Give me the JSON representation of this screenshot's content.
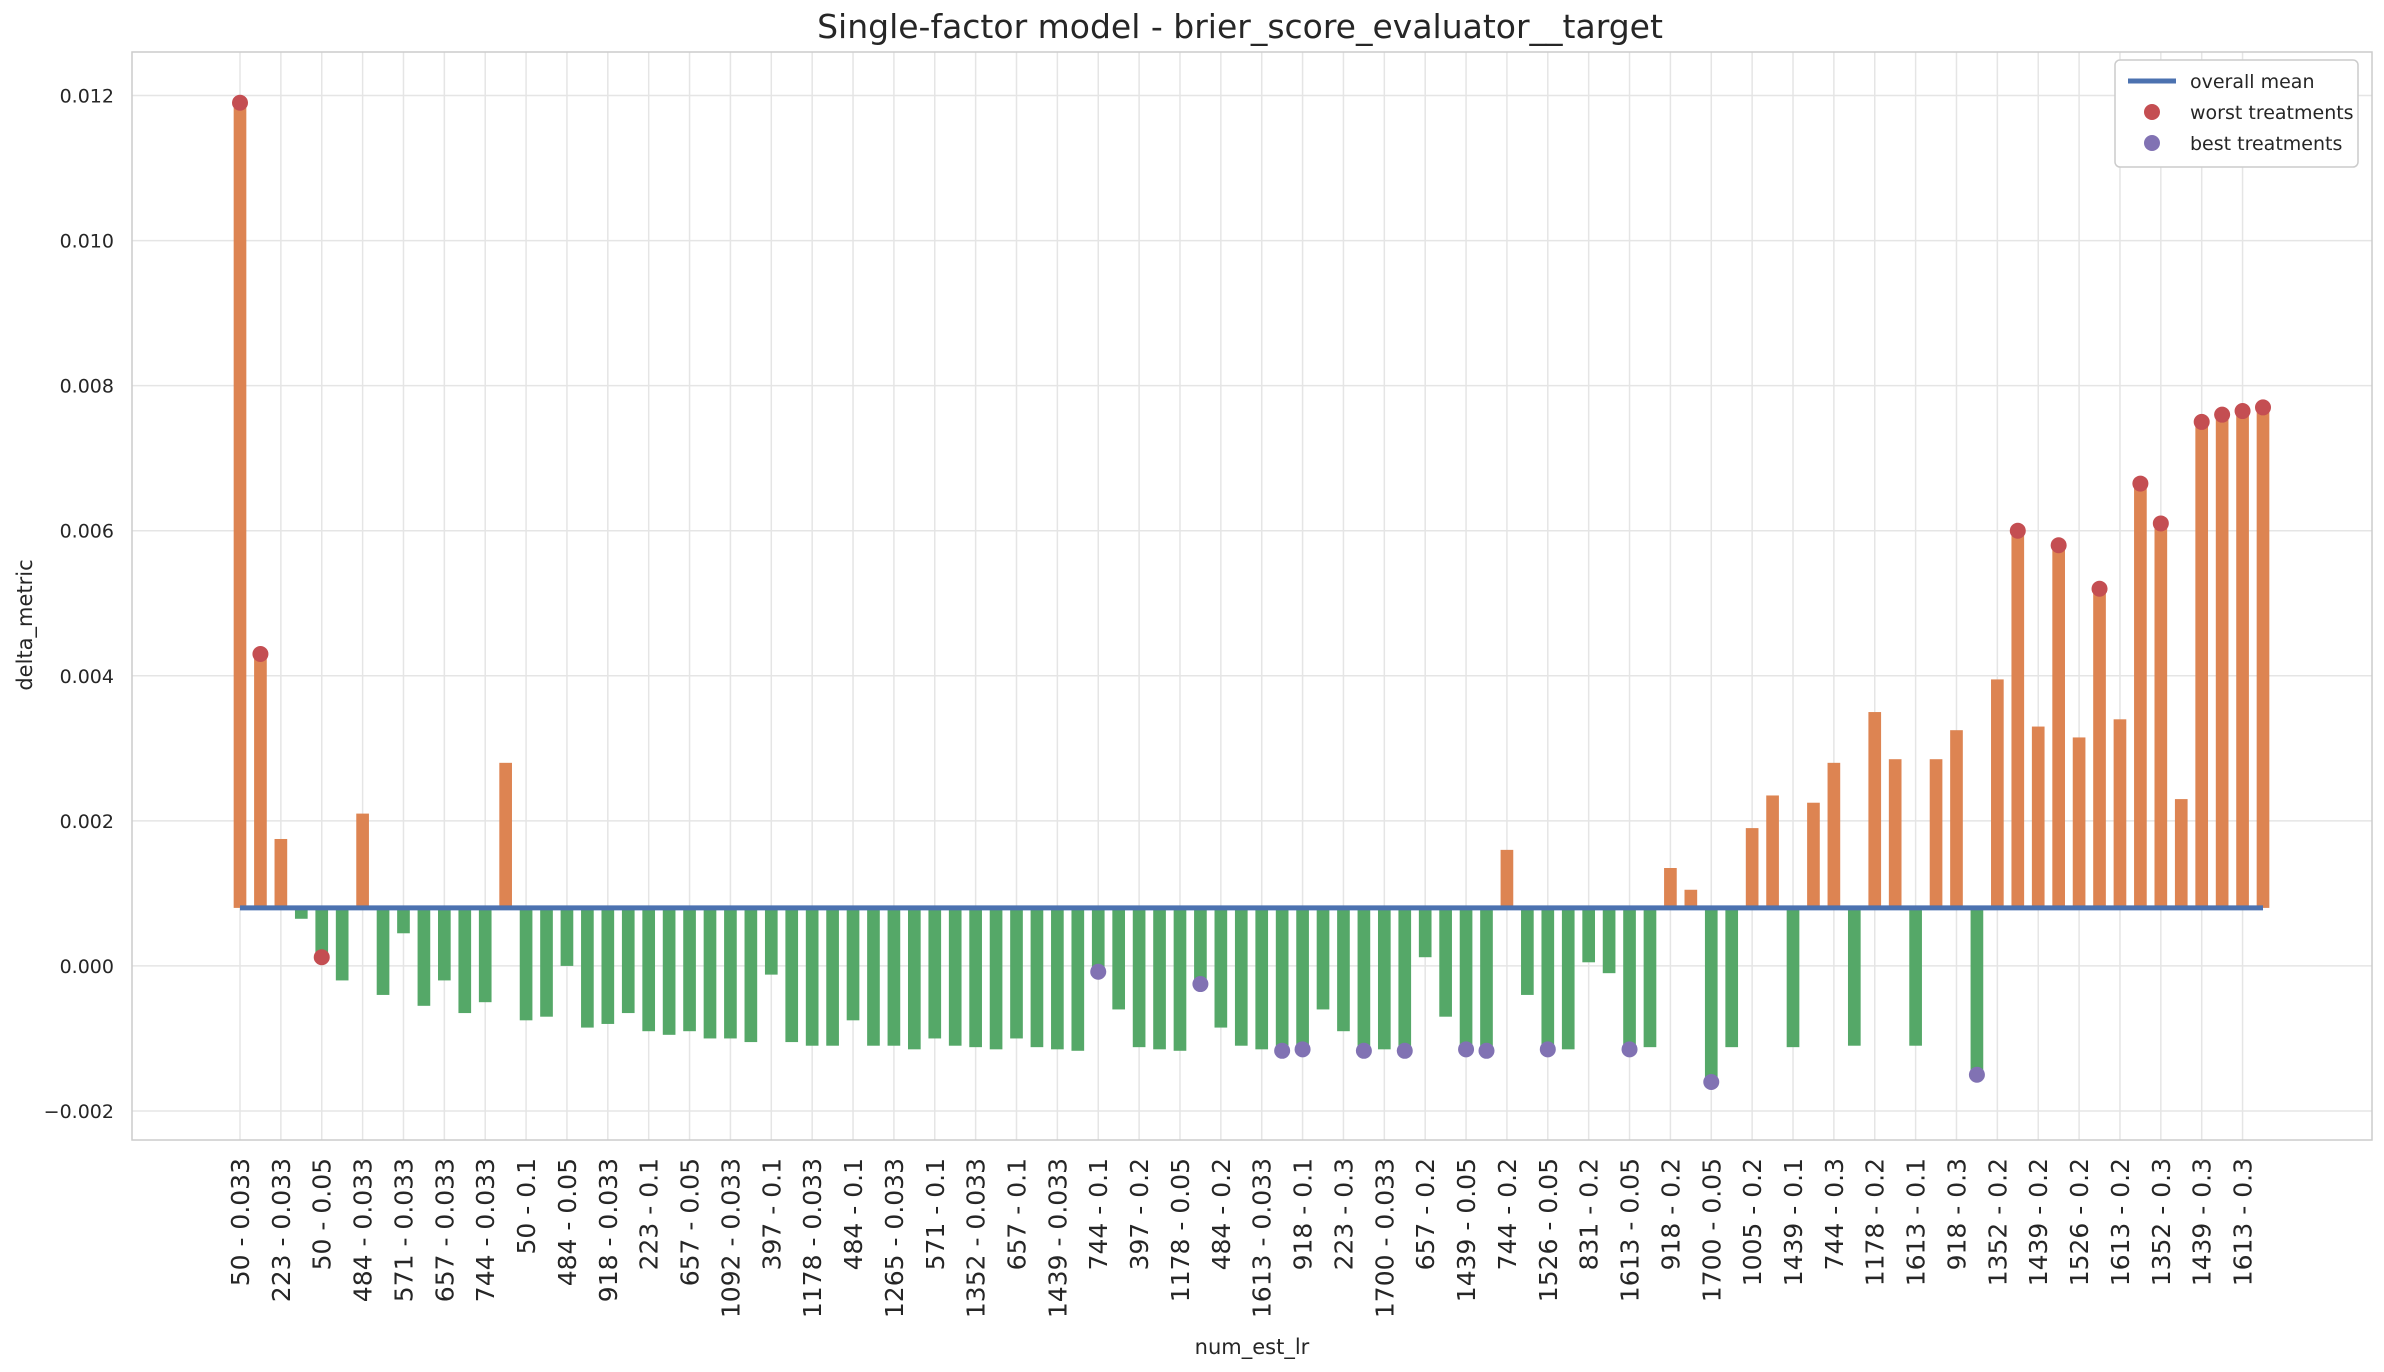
{
  "chart_data": {
    "type": "bar",
    "title": "Single-factor model - brier_score_evaluator__target",
    "xlabel": "num_est_lr",
    "ylabel": "delta_metric",
    "ylim": [
      -0.0024,
      0.0126
    ],
    "yticks": [
      -0.002,
      0.0,
      0.002,
      0.004,
      0.006,
      0.008,
      0.01,
      0.012
    ],
    "ytick_labels": [
      "−0.002",
      "0.000",
      "0.002",
      "0.004",
      "0.006",
      "0.008",
      "0.010",
      "0.012"
    ],
    "grid": true,
    "legend_position": "top-right",
    "overall_mean": 0.0008,
    "colors": {
      "above_mean_bar": "#dd8452",
      "below_mean_bar": "#55a868",
      "mean_line": "#4c72b0",
      "worst_marker": "#c44e52",
      "best_marker": "#8172b3",
      "grid": "#e5e5e5",
      "axes_edge": "#cccccc"
    },
    "tick_labels": [
      "50 - 0.033",
      "223 - 0.033",
      "50 - 0.05",
      "484 - 0.033",
      "571 - 0.033",
      "657 - 0.033",
      "744 - 0.033",
      "50 - 0.1",
      "484 - 0.05",
      "918 - 0.033",
      "223 - 0.1",
      "657 - 0.05",
      "1092 - 0.033",
      "397 - 0.1",
      "1178 - 0.033",
      "484 - 0.1",
      "1265 - 0.033",
      "571 - 0.1",
      "1352 - 0.033",
      "657 - 0.1",
      "1439 - 0.033",
      "744 - 0.1",
      "397 - 0.2",
      "1178 - 0.05",
      "484 - 0.2",
      "1613 - 0.033",
      "918 - 0.1",
      "223 - 0.3",
      "1700 - 0.033",
      "657 - 0.2",
      "1439 - 0.05",
      "744 - 0.2",
      "1526 - 0.05",
      "831 - 0.2",
      "1613 - 0.05",
      "918 - 0.2",
      "1700 - 0.05",
      "1005 - 0.2",
      "1439 - 0.1",
      "744 - 0.3",
      "1178 - 0.2",
      "1613 - 0.1",
      "918 - 0.3",
      "1352 - 0.2",
      "1439 - 0.2",
      "1526 - 0.2",
      "1613 - 0.2",
      "1352 - 0.3",
      "1439 - 0.3",
      "1613 - 0.3"
    ],
    "values": [
      0.0119,
      0.0043,
      0.00175,
      0.00065,
      0.00012,
      -0.0002,
      0.0021,
      -0.0004,
      0.00045,
      -0.00055,
      -0.0002,
      -0.00065,
      -0.0005,
      0.0028,
      -0.00075,
      -0.0007,
      0.0,
      -0.00085,
      -0.0008,
      -0.00065,
      -0.0009,
      -0.00095,
      -0.0009,
      -0.001,
      -0.001,
      -0.00105,
      -0.00012,
      -0.00105,
      -0.0011,
      -0.0011,
      -0.00075,
      -0.0011,
      -0.0011,
      -0.00115,
      -0.001,
      -0.0011,
      -0.00112,
      -0.00115,
      -0.001,
      -0.00112,
      -0.00115,
      -0.00117,
      -8e-05,
      -0.0006,
      -0.00112,
      -0.00115,
      -0.00117,
      -0.00025,
      -0.00085,
      -0.0011,
      -0.00115,
      -0.00117,
      -0.00115,
      -0.0006,
      -0.0009,
      -0.00117,
      -0.00115,
      -0.00117,
      0.00012,
      -0.0007,
      -0.00115,
      -0.00117,
      0.0016,
      -0.0004,
      -0.00115,
      -0.00115,
      5e-05,
      -0.0001,
      -0.00115,
      -0.00112,
      0.00135,
      0.00105,
      -0.0016,
      -0.00112,
      0.0019,
      0.00235,
      -0.00112,
      0.00225,
      0.0028,
      -0.0011,
      0.0035,
      0.00285,
      -0.0011,
      0.00285,
      0.00325,
      -0.0015,
      0.00395,
      0.006,
      0.0033,
      0.0058,
      0.00315,
      0.0052,
      0.0034,
      0.00665,
      0.0061,
      0.0023,
      0.0075,
      0.0076,
      0.00765,
      0.0077
    ],
    "worst_indices": [
      0,
      1,
      4,
      87,
      89,
      91,
      93,
      94,
      96,
      97,
      98,
      99
    ],
    "best_indices": [
      42,
      47,
      51,
      52,
      55,
      57,
      60,
      61,
      64,
      68,
      72,
      85
    ],
    "legend": [
      "overall mean",
      "worst treatments",
      "best treatments"
    ]
  }
}
